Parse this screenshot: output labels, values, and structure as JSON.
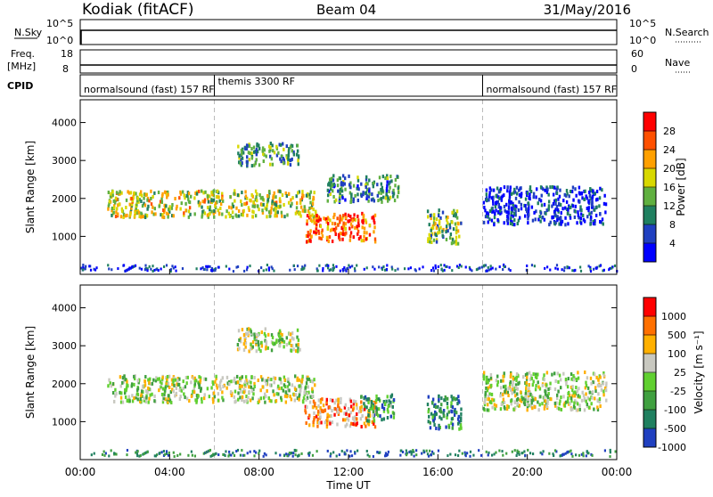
{
  "header": {
    "station": "Kodiak (fitACF)",
    "beam": "Beam 04",
    "date": "31/May/2016"
  },
  "nsky": {
    "label": "N.Sky",
    "ticks": [
      "10^5",
      "10^0"
    ],
    "right_label": "N.Search",
    "right_ticks": [
      "10^5",
      "10^0"
    ]
  },
  "freq": {
    "label_top": "Freq.",
    "label_bottom": "[MHz]",
    "ticks": [
      18,
      8
    ],
    "right_label": "Nave",
    "right_ticks": [
      60,
      0
    ]
  },
  "cpid": {
    "label": "CPID",
    "segments": [
      {
        "name": "normalsound (fast) 157 RF",
        "start_h": 0,
        "end_h": 6
      },
      {
        "name": "themis 3300 RF",
        "start_h": 6,
        "end_h": 18
      },
      {
        "name": "normalsound (fast) 157 RF",
        "start_h": 18,
        "end_h": 24
      }
    ]
  },
  "x_axis": {
    "ticks": [
      "00:00",
      "04:00",
      "08:00",
      "12:00",
      "16:00",
      "20:00",
      "00:00"
    ],
    "label": "Time UT"
  },
  "chart_data": [
    {
      "type": "heatmap",
      "name": "power",
      "ylabel": "Slant Range [km]",
      "yticks": [
        1000,
        2000,
        3000,
        4000
      ],
      "ylim": [
        0,
        4600
      ],
      "xlim": [
        0,
        24
      ],
      "colorbar": {
        "label": "Power [dB]",
        "ticks": [
          28,
          24,
          20,
          16,
          12,
          8,
          4
        ],
        "colors": [
          "#0000ff",
          "#2040c0",
          "#208060",
          "#60b040",
          "#d8d800",
          "#ffa000",
          "#ff5000",
          "#ff0000"
        ]
      },
      "regions": [
        {
          "t0": 1.2,
          "t1": 10.5,
          "r0": 1500,
          "r1": 2200,
          "level": 0.55
        },
        {
          "t0": 7.0,
          "t1": 9.8,
          "r0": 2850,
          "r1": 3450,
          "level": 0.35
        },
        {
          "t0": 10.0,
          "t1": 13.2,
          "r0": 850,
          "r1": 1600,
          "level": 0.8
        },
        {
          "t0": 11.0,
          "t1": 14.2,
          "r0": 1900,
          "r1": 2600,
          "level": 0.3
        },
        {
          "t0": 15.5,
          "t1": 17.0,
          "r0": 800,
          "r1": 1700,
          "level": 0.45
        },
        {
          "t0": 18.0,
          "t1": 23.5,
          "r0": 1300,
          "r1": 2300,
          "level": 0.15
        }
      ]
    },
    {
      "type": "heatmap",
      "name": "velocity",
      "ylabel": "Slant Range [km]",
      "yticks": [
        1000,
        2000,
        3000,
        4000
      ],
      "ylim": [
        0,
        4600
      ],
      "xlim": [
        0,
        24
      ],
      "colorbar": {
        "label": "Velocity [m s⁻¹]",
        "ticks": [
          1000,
          500,
          100,
          25,
          -25,
          -100,
          -500,
          -1000
        ],
        "colors": [
          "#2040c0",
          "#208060",
          "#40a040",
          "#60d030",
          "#c8c8c0",
          "#ffb000",
          "#ff7000",
          "#ff0000"
        ]
      },
      "regions": [
        {
          "t0": 1.2,
          "t1": 10.5,
          "r0": 1500,
          "r1": 2200,
          "level": 0.5
        },
        {
          "t0": 7.0,
          "t1": 9.8,
          "r0": 2850,
          "r1": 3450,
          "level": 0.5
        },
        {
          "t0": 10.0,
          "t1": 13.2,
          "r0": 850,
          "r1": 1600,
          "level": 0.72
        },
        {
          "t0": 12.5,
          "t1": 14.0,
          "r0": 1000,
          "r1": 1700,
          "level": 0.3
        },
        {
          "t0": 15.5,
          "t1": 17.0,
          "r0": 800,
          "r1": 1700,
          "level": 0.2
        },
        {
          "t0": 18.0,
          "t1": 23.5,
          "r0": 1300,
          "r1": 2300,
          "level": 0.5
        }
      ]
    }
  ]
}
